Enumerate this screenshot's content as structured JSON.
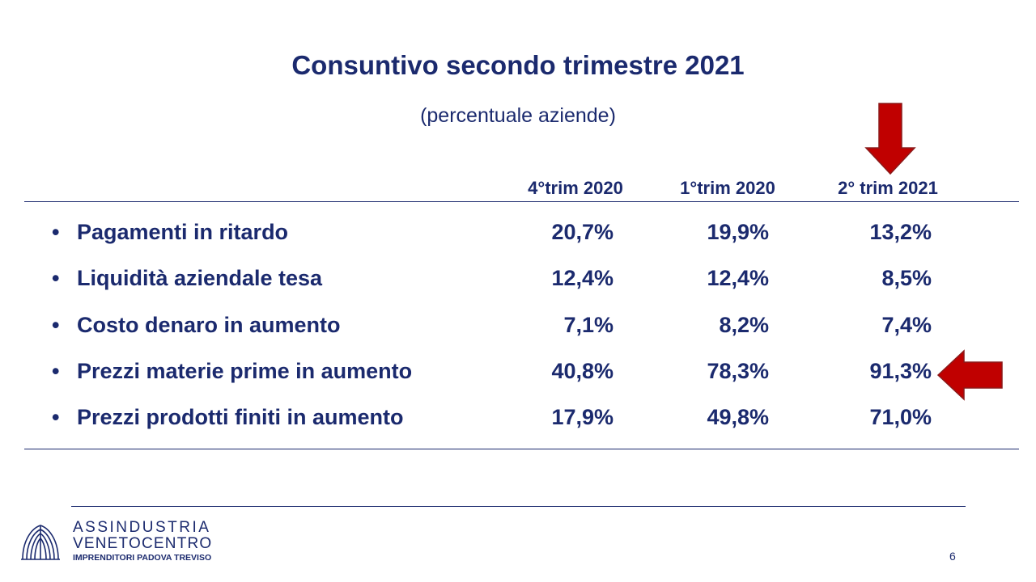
{
  "slide": {
    "title": "Consuntivo secondo trimestre 2021",
    "subtitle": "(percentuale aziende)"
  },
  "table": {
    "headers": [
      "4°trim 2020",
      "1°trim 2020",
      "2° trim 2021"
    ],
    "rows": [
      {
        "bullet": "•",
        "label": "Pagamenti in ritardo",
        "values": [
          "20,7%",
          "19,9%",
          "13,2%"
        ]
      },
      {
        "bullet": "•",
        "label": "Liquidità aziendale tesa",
        "values": [
          "12,4%",
          "12,4%",
          "8,5%"
        ]
      },
      {
        "bullet": "•",
        "label": "Costo denaro in aumento",
        "values": [
          "7,1%",
          "8,2%",
          "7,4%"
        ]
      },
      {
        "bullet": "•",
        "label": "Prezzi materie prime in aumento",
        "values": [
          "40,8%",
          "78,3%",
          "91,3%"
        ]
      },
      {
        "bullet": "•",
        "label": "Prezzi prodotti finiti in aumento",
        "values": [
          "17,9%",
          "49,8%",
          "71,0%"
        ]
      }
    ]
  },
  "highlights": {
    "column_arrow_icon": "arrow-down-icon",
    "row_arrow_icon": "arrow-left-icon",
    "arrow_color": "#c00000"
  },
  "footer": {
    "logo_icon": "assindustria-logo",
    "brand_line1": "ASSINDUSTRIA",
    "brand_line2": "VENETOCENTRO",
    "brand_line3": "IMPRENDITORI PADOVA TREVISO",
    "page_number": "6"
  },
  "colors": {
    "text": "#1b2a6e",
    "accent": "#c00000",
    "background": "#ffffff"
  }
}
